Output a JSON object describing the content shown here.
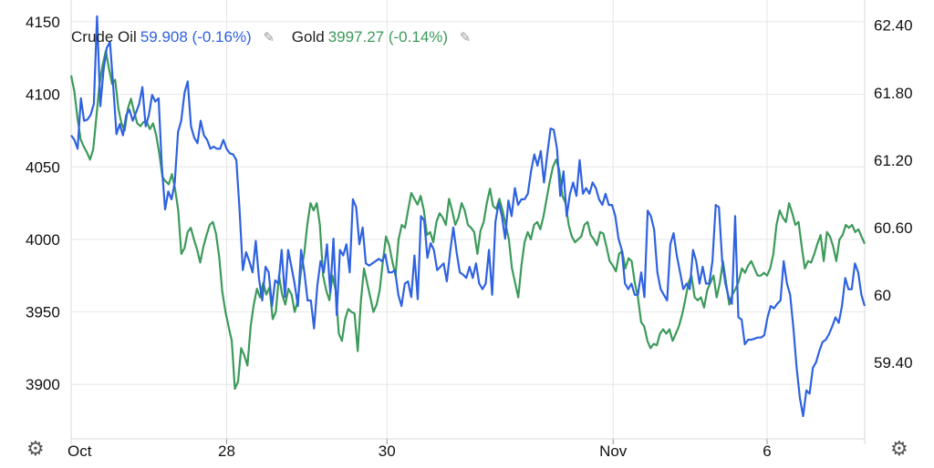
{
  "legend": [
    {
      "name": "Crude Oil",
      "value": "59.908 (-0.16%)",
      "color": "#2f62e0",
      "edit_icon": "pencil-icon"
    },
    {
      "name": "Gold",
      "value": "3997.27 (-0.14%)",
      "color": "#3c9a5a",
      "edit_icon": "pencil-icon"
    }
  ],
  "settings_icon": "gear-icon",
  "chart_data": {
    "type": "line",
    "title": "",
    "x_ticks": [
      "Oct",
      "28",
      "30",
      "Nov",
      "6"
    ],
    "left_axis": {
      "ticks": [
        "4150",
        "4100",
        "4050",
        "4000",
        "3950",
        "3900"
      ],
      "ylim": [
        3865,
        4160
      ]
    },
    "right_axis": {
      "ticks": [
        "62.40",
        "61.80",
        "61.20",
        "60.60",
        "60",
        "59.40"
      ],
      "ylim": [
        58.75,
        62.56
      ]
    },
    "grid": true,
    "legend_position": "top-left",
    "series": [
      {
        "name": "Crude Oil",
        "axis": "right",
        "color": "#2f62e0",
        "values": [
          61.42,
          61.38,
          61.3,
          61.75,
          61.55,
          61.56,
          61.6,
          61.7,
          62.48,
          61.68,
          62.0,
          62.2,
          62.25,
          61.85,
          61.43,
          61.52,
          61.42,
          61.6,
          61.65,
          61.55,
          61.62,
          61.7,
          61.85,
          61.5,
          61.6,
          61.78,
          61.72,
          61.75,
          61.15,
          60.76,
          60.92,
          60.85,
          61.0,
          61.45,
          61.55,
          61.8,
          61.9,
          61.5,
          61.4,
          61.35,
          61.55,
          61.42,
          61.38,
          61.3,
          61.32,
          61.3,
          61.3,
          61.38,
          61.3,
          61.26,
          61.25,
          61.2,
          60.75,
          60.22,
          60.38,
          60.3,
          60.2,
          60.48,
          60.14,
          59.95,
          60.25,
          60.2,
          59.9,
          60.13,
          60.1,
          60.4,
          59.98,
          60.4,
          60.25,
          60.1,
          59.9,
          60.4,
          60.2,
          59.95,
          59.95,
          59.7,
          60.08,
          60.3,
          60.2,
          60.45,
          60.02,
          60.5,
          59.82,
          60.4,
          60.35,
          60.45,
          60.2,
          60.85,
          60.78,
          60.45,
          60.6,
          60.28,
          60.26,
          60.28,
          60.3,
          60.32,
          60.3,
          60.36,
          60.2,
          60.2,
          60.22,
          60.0,
          59.9,
          60.1,
          60.12,
          59.98,
          60.35,
          59.96,
          60.7,
          60.66,
          60.33,
          60.46,
          60.4,
          60.22,
          60.25,
          60.28,
          60.12,
          60.38,
          60.6,
          60.38,
          60.2,
          60.18,
          60.15,
          60.25,
          60.15,
          60.28,
          60.1,
          60.05,
          60.1,
          60.4,
          60.0,
          60.65,
          60.82,
          60.7,
          60.5,
          60.84,
          60.7,
          60.95,
          60.8,
          60.85,
          60.85,
          60.9,
          61.1,
          61.25,
          61.15,
          61.28,
          61.0,
          61.25,
          61.48,
          61.47,
          61.3,
          60.88,
          61.1,
          60.7,
          60.9,
          61.0,
          60.88,
          61.2,
          60.9,
          60.95,
          60.9,
          61.0,
          60.95,
          60.85,
          60.8,
          60.9,
          60.8,
          60.8,
          60.7,
          60.5,
          60.4,
          60.1,
          60.05,
          60.1,
          60.0,
          60.0,
          60.2,
          59.98,
          60.75,
          60.7,
          60.58,
          60.2,
          60.05,
          60.0,
          59.95,
          60.45,
          60.55,
          60.35,
          60.2,
          60.05,
          60.1,
          60.05,
          60.4,
          60.3,
          60.1,
          60.25,
          60.1,
          60.1,
          60.3,
          60.8,
          60.78,
          60.3,
          60.1,
          59.98,
          59.92,
          60.7,
          59.8,
          59.78,
          59.56,
          59.6,
          59.6,
          59.61,
          59.62,
          59.62,
          59.64,
          59.8,
          59.9,
          59.88,
          59.92,
          59.95,
          60.3,
          60.1,
          60.0,
          59.7,
          59.35,
          59.08,
          58.92,
          59.15,
          59.12,
          59.35,
          59.4,
          59.5,
          59.58,
          59.6,
          59.65,
          59.72,
          59.8,
          59.75,
          59.9,
          60.15,
          60.05,
          60.05,
          60.28,
          60.2,
          60.0,
          59.9
        ]
      },
      {
        "name": "Gold",
        "axis": "left",
        "color": "#3c9a5a",
        "values": [
          4113,
          4102,
          4084,
          4069,
          4064,
          4060,
          4055,
          4062,
          4084,
          4107,
          4120,
          4130,
          4118,
          4107,
          4110,
          4090,
          4080,
          4075,
          4090,
          4097,
          4088,
          4080,
          4078,
          4081,
          4081,
          4076,
          4080,
          4072,
          4059,
          4043,
          4040,
          4038,
          4045,
          4035,
          4020,
          3990,
          3994,
          4005,
          4008,
          4000,
          3993,
          3984,
          3995,
          4003,
          4010,
          4012,
          4004,
          3988,
          3964,
          3950,
          3940,
          3930,
          3897,
          3902,
          3925,
          3920,
          3913,
          3940,
          3955,
          3966,
          3960,
          3970,
          3962,
          3967,
          3945,
          3950,
          3975,
          3962,
          3955,
          3966,
          3962,
          3950,
          3958,
          3978,
          3990,
          4010,
          4025,
          4020,
          4025,
          4010,
          3975,
          3965,
          3958,
          3975,
          3965,
          3935,
          3930,
          3945,
          3952,
          3950,
          3949,
          3923,
          3957,
          3980,
          3970,
          3960,
          3950,
          3955,
          3965,
          3985,
          4002,
          3996,
          3985,
          3975,
          4000,
          4010,
          4008,
          4020,
          4032,
          4028,
          4024,
          4030,
          4020,
          4003,
          4005,
          3998,
          4012,
          4018,
          4015,
          4010,
          4028,
          4020,
          4010,
          4015,
          4025,
          4020,
          4010,
          4008,
          4005,
          3990,
          4006,
          4012,
          4025,
          4035,
          4023,
          4021,
          4028,
          4020,
          4010,
          4000,
          3980,
          3970,
          3960,
          3982,
          3998,
          4005,
          4000,
          4010,
          4012,
          4007,
          4016,
          4028,
          4040,
          4050,
          4055,
          4048,
          4030,
          4025,
          4010,
          4002,
          3998,
          4000,
          4002,
          4010,
          4012,
          4003,
          4000,
          3996,
          4005,
          4004,
          3995,
          3985,
          3982,
          3978,
          3990,
          3992,
          3980,
          3987,
          3985,
          3970,
          3960,
          3943,
          3940,
          3930,
          3925,
          3928,
          3927,
          3935,
          3938,
          3935,
          3938,
          3930,
          3935,
          3940,
          3948,
          3958,
          3970,
          3975,
          3960,
          3958,
          3960,
          3953,
          3965,
          3970,
          3975,
          3960,
          3970,
          3985,
          3970,
          3955,
          3962,
          3966,
          3971,
          3980,
          3977,
          3982,
          3985,
          3980,
          3975,
          3975,
          3977,
          3975,
          3980,
          3990,
          4010,
          4020,
          4015,
          4012,
          4025,
          4018,
          4010,
          4012,
          3995,
          3980,
          3985,
          3984,
          3990,
          3997,
          4003,
          3985,
          4005,
          4002,
          3995,
          3985,
          4000,
          4003,
          4010,
          4008,
          4010,
          4005,
          4007,
          4002,
          3997
        ]
      }
    ]
  }
}
